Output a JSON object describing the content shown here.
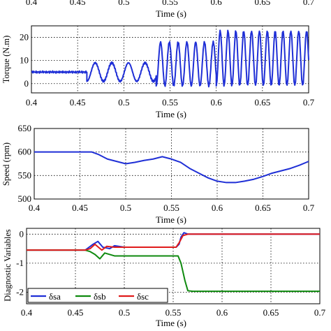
{
  "chart_data": [
    {
      "type": "line",
      "xlabel": "Time (s)",
      "ylabel": "",
      "xlim": [
        0.4,
        0.7
      ],
      "x_ticks": [
        "0.4",
        "0.45",
        "0.5",
        "0.55",
        "0.6",
        "0.65",
        "0.7"
      ],
      "grid": true,
      "cropped": true,
      "series": []
    },
    {
      "type": "line",
      "xlabel": "Time (s)",
      "ylabel": "Torque (N.m)",
      "xlim": [
        0.4,
        0.7
      ],
      "ylim": [
        -4,
        25
      ],
      "x_ticks": [
        "0.4",
        "0.45",
        "0.5",
        "0.55",
        "0.6",
        "0.65",
        "0.7"
      ],
      "y_ticks": [
        "0",
        "10",
        "20"
      ],
      "grid": true,
      "series": [
        {
          "color": "#1f2fd6",
          "points": [
            [
              0.4,
              5
            ],
            [
              0.46,
              5
            ],
            [
              0.467,
              0
            ],
            [
              0.48,
              6
            ],
            [
              0.493,
              9
            ],
            [
              0.505,
              2
            ],
            [
              0.51,
              9
            ],
            [
              0.523,
              4
            ],
            [
              0.53,
              9
            ],
            [
              0.545,
              1
            ],
            [
              0.555,
              12
            ],
            [
              0.565,
              15
            ],
            [
              0.575,
              17
            ],
            [
              0.585,
              18
            ],
            [
              0.6,
              20
            ],
            [
              0.615,
              21
            ],
            [
              0.63,
              23
            ],
            [
              0.645,
              23
            ],
            [
              0.66,
              21
            ],
            [
              0.675,
              20
            ],
            [
              0.69,
              19
            ]
          ],
          "oscillation": [
            {
              "t0": 0.4,
              "t1": 0.46,
              "baseline": 5,
              "amp": 0.5
            },
            {
              "t0": 0.46,
              "t1": 0.535,
              "low": 1,
              "high": 9,
              "period": 0.018
            },
            {
              "t0": 0.535,
              "t1": 0.6,
              "low": -1,
              "high": 18,
              "period": 0.0095
            },
            {
              "t0": 0.6,
              "t1": 0.7,
              "low": -1,
              "high": 23,
              "period": 0.0085
            }
          ]
        }
      ]
    },
    {
      "type": "line",
      "xlabel": "Time (s)",
      "ylabel": "Speed (rpm)",
      "xlim": [
        0.4,
        0.7
      ],
      "ylim": [
        500,
        650
      ],
      "x_ticks": [
        "0.4",
        "0.45",
        "0.5",
        "0.55",
        "0.6",
        "0.65",
        "0.7"
      ],
      "y_ticks": [
        "500",
        "550",
        "600",
        "650"
      ],
      "grid": true,
      "series": [
        {
          "color": "#1f2fd6",
          "points": [
            [
              0.4,
              600
            ],
            [
              0.463,
              600
            ],
            [
              0.47,
              595
            ],
            [
              0.48,
              585
            ],
            [
              0.49,
              580
            ],
            [
              0.5,
              575
            ],
            [
              0.51,
              578
            ],
            [
              0.52,
              582
            ],
            [
              0.53,
              585
            ],
            [
              0.54,
              590
            ],
            [
              0.55,
              585
            ],
            [
              0.56,
              578
            ],
            [
              0.57,
              565
            ],
            [
              0.58,
              555
            ],
            [
              0.59,
              545
            ],
            [
              0.6,
              538
            ],
            [
              0.61,
              535
            ],
            [
              0.62,
              535
            ],
            [
              0.63,
              538
            ],
            [
              0.64,
              542
            ],
            [
              0.65,
              548
            ],
            [
              0.66,
              555
            ],
            [
              0.67,
              560
            ],
            [
              0.68,
              565
            ],
            [
              0.69,
              572
            ],
            [
              0.7,
              580
            ]
          ]
        }
      ]
    },
    {
      "type": "line",
      "xlabel": "Time (s)",
      "ylabel": "Diagnostic Variables",
      "xlim": [
        0.4,
        0.7
      ],
      "ylim": [
        -2.4,
        0.2
      ],
      "x_ticks": [
        "0.4",
        "0.45",
        "0.5",
        "0.55",
        "0.6",
        "0.65",
        "0.7"
      ],
      "y_ticks": [
        "0",
        "-1",
        "-2"
      ],
      "grid": true,
      "legend": "bottom-left",
      "series": [
        {
          "name": "δsa",
          "color": "#1f2fd6",
          "points": [
            [
              0.4,
              -0.55
            ],
            [
              0.46,
              -0.55
            ],
            [
              0.468,
              -0.35
            ],
            [
              0.473,
              -0.25
            ],
            [
              0.478,
              -0.45
            ],
            [
              0.485,
              -0.5
            ],
            [
              0.49,
              -0.4
            ],
            [
              0.5,
              -0.45
            ],
            [
              0.52,
              -0.45
            ],
            [
              0.54,
              -0.45
            ],
            [
              0.553,
              -0.45
            ],
            [
              0.556,
              -0.35
            ],
            [
              0.558,
              -0.1
            ],
            [
              0.561,
              0.05
            ],
            [
              0.565,
              0
            ],
            [
              0.7,
              0
            ]
          ]
        },
        {
          "name": "δsb",
          "color": "#0f8a0f",
          "points": [
            [
              0.4,
              -0.55
            ],
            [
              0.46,
              -0.55
            ],
            [
              0.465,
              -0.6
            ],
            [
              0.47,
              -0.7
            ],
            [
              0.475,
              -0.85
            ],
            [
              0.48,
              -0.65
            ],
            [
              0.49,
              -0.75
            ],
            [
              0.5,
              -0.75
            ],
            [
              0.52,
              -0.75
            ],
            [
              0.54,
              -0.75
            ],
            [
              0.555,
              -0.75
            ],
            [
              0.558,
              -1.0
            ],
            [
              0.562,
              -1.6
            ],
            [
              0.565,
              -1.95
            ],
            [
              0.57,
              -1.97
            ],
            [
              0.7,
              -1.97
            ]
          ]
        },
        {
          "name": "δsc",
          "color": "#e01b1b",
          "points": [
            [
              0.4,
              -0.55
            ],
            [
              0.46,
              -0.55
            ],
            [
              0.465,
              -0.5
            ],
            [
              0.47,
              -0.35
            ],
            [
              0.477,
              -0.55
            ],
            [
              0.482,
              -0.42
            ],
            [
              0.49,
              -0.45
            ],
            [
              0.5,
              -0.45
            ],
            [
              0.52,
              -0.45
            ],
            [
              0.54,
              -0.45
            ],
            [
              0.553,
              -0.45
            ],
            [
              0.556,
              -0.3
            ],
            [
              0.56,
              -0.05
            ],
            [
              0.565,
              0
            ],
            [
              0.7,
              0
            ]
          ]
        }
      ]
    }
  ]
}
